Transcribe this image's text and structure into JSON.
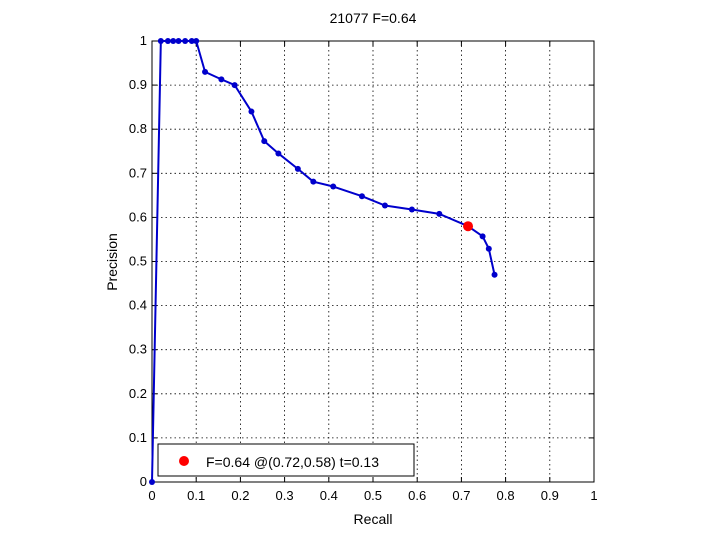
{
  "chart_data": {
    "type": "line",
    "title": "21077 F=0.64",
    "xlabel": "Recall",
    "ylabel": "Precision",
    "xlim": [
      0,
      1
    ],
    "ylim": [
      0,
      1
    ],
    "xticks": [
      "0",
      "0.1",
      "0.2",
      "0.3",
      "0.4",
      "0.5",
      "0.6",
      "0.7",
      "0.8",
      "0.9",
      "1"
    ],
    "yticks": [
      "0",
      "0.1",
      "0.2",
      "0.3",
      "0.4",
      "0.5",
      "0.6",
      "0.7",
      "0.8",
      "0.9",
      "1"
    ],
    "grid": true,
    "series": [
      {
        "color": "#0000cc",
        "x": [
          0.0,
          0.02,
          0.036,
          0.048,
          0.06,
          0.075,
          0.09,
          0.1,
          0.12,
          0.157,
          0.187,
          0.225,
          0.254,
          0.286,
          0.33,
          0.365,
          0.41,
          0.475,
          0.527,
          0.588,
          0.65,
          0.715,
          0.748,
          0.762,
          0.775
        ],
        "y": [
          0.0,
          1.0,
          1.0,
          1.0,
          1.0,
          1.0,
          1.0,
          1.0,
          0.93,
          0.913,
          0.9,
          0.84,
          0.773,
          0.745,
          0.71,
          0.681,
          0.67,
          0.648,
          0.627,
          0.618,
          0.608,
          0.58,
          0.557,
          0.529,
          0.47
        ]
      }
    ],
    "highlight": {
      "x": 0.715,
      "y": 0.58,
      "color": "#ff0000"
    },
    "legend": {
      "position": "bottom-left",
      "text": "F=0.64 @(0.72,0.58) t=0.13"
    }
  }
}
